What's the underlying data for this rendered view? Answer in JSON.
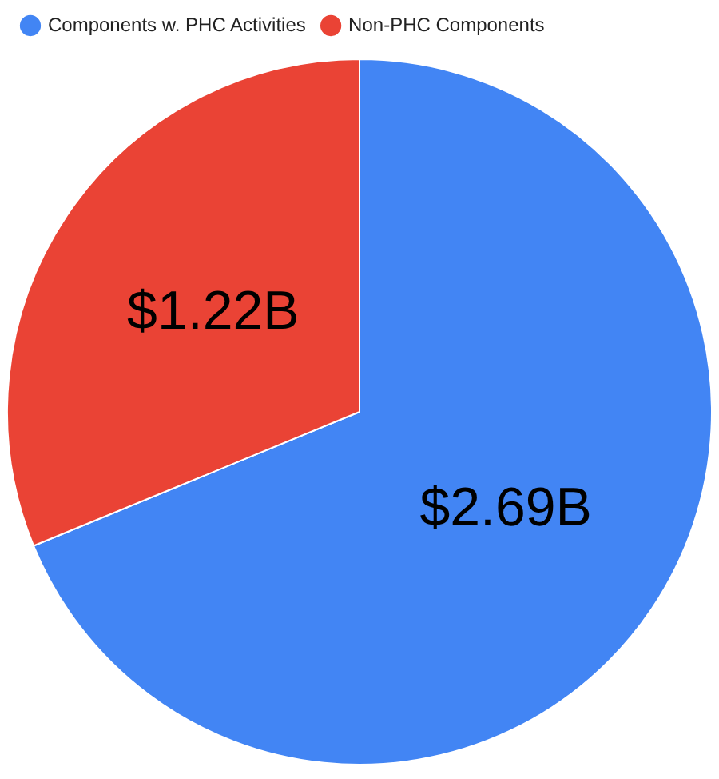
{
  "chart_data": {
    "type": "pie",
    "categories": [
      "Components w. PHC Activities",
      "Non-PHC Components"
    ],
    "values": [
      2.69,
      1.22
    ],
    "colors": [
      "#4285f4",
      "#ea4335"
    ],
    "value_labels": [
      "$2.69B",
      "$1.22B"
    ],
    "legend": "top left"
  }
}
